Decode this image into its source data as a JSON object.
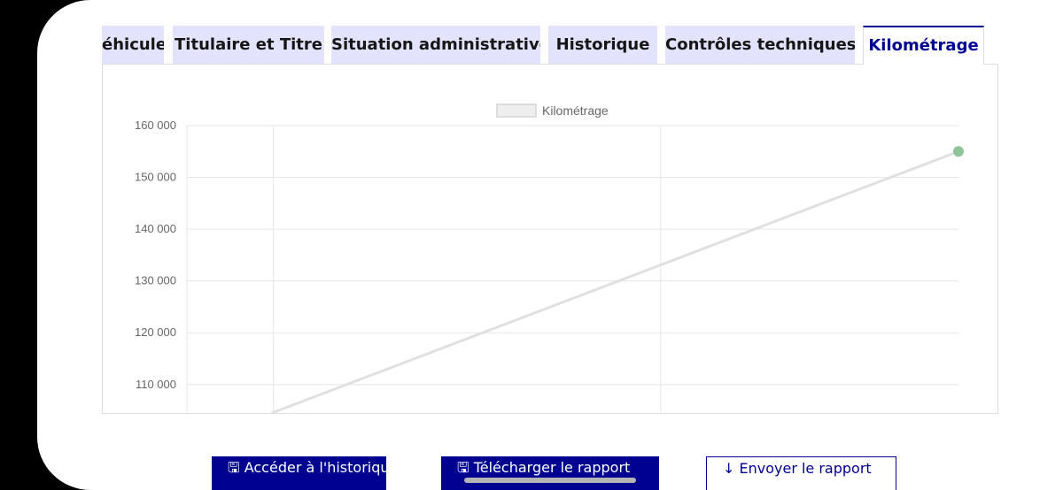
{
  "tabs": [
    {
      "label": "éhicule"
    },
    {
      "label": "Titulaire et Titre"
    },
    {
      "label": "Situation administrative"
    },
    {
      "label": "Historique"
    },
    {
      "label": "Contrôles techniques"
    },
    {
      "label": "Kilométrage"
    }
  ],
  "active_tab": "Kilométrage",
  "colors": {
    "accent": "#000091",
    "tab_bg": "#e3e3fd",
    "line": "#e0e0e0",
    "point": "#8fc49a"
  },
  "chart_data": {
    "type": "line",
    "legend": "Kilométrage",
    "legend_position": "top-center",
    "yticks": [
      110000,
      120000,
      130000,
      140000,
      150000,
      160000
    ],
    "ytick_labels": [
      "110 000",
      "120 000",
      "130 000",
      "140 000",
      "150 000",
      "160 000"
    ],
    "ylim": [
      104500,
      160000
    ],
    "grid": true,
    "series": [
      {
        "name": "Kilométrage",
        "points": [
          {
            "x": 0.11,
            "y": 104500
          },
          {
            "x": 1.0,
            "y": 155000
          }
        ]
      }
    ]
  },
  "buttons": [
    {
      "label": "🖫 Accéder à l'historique HistoVec"
    },
    {
      "label": "🖫 Télécharger le rapport"
    },
    {
      "label": "↓ Envoyer le rapport"
    }
  ]
}
